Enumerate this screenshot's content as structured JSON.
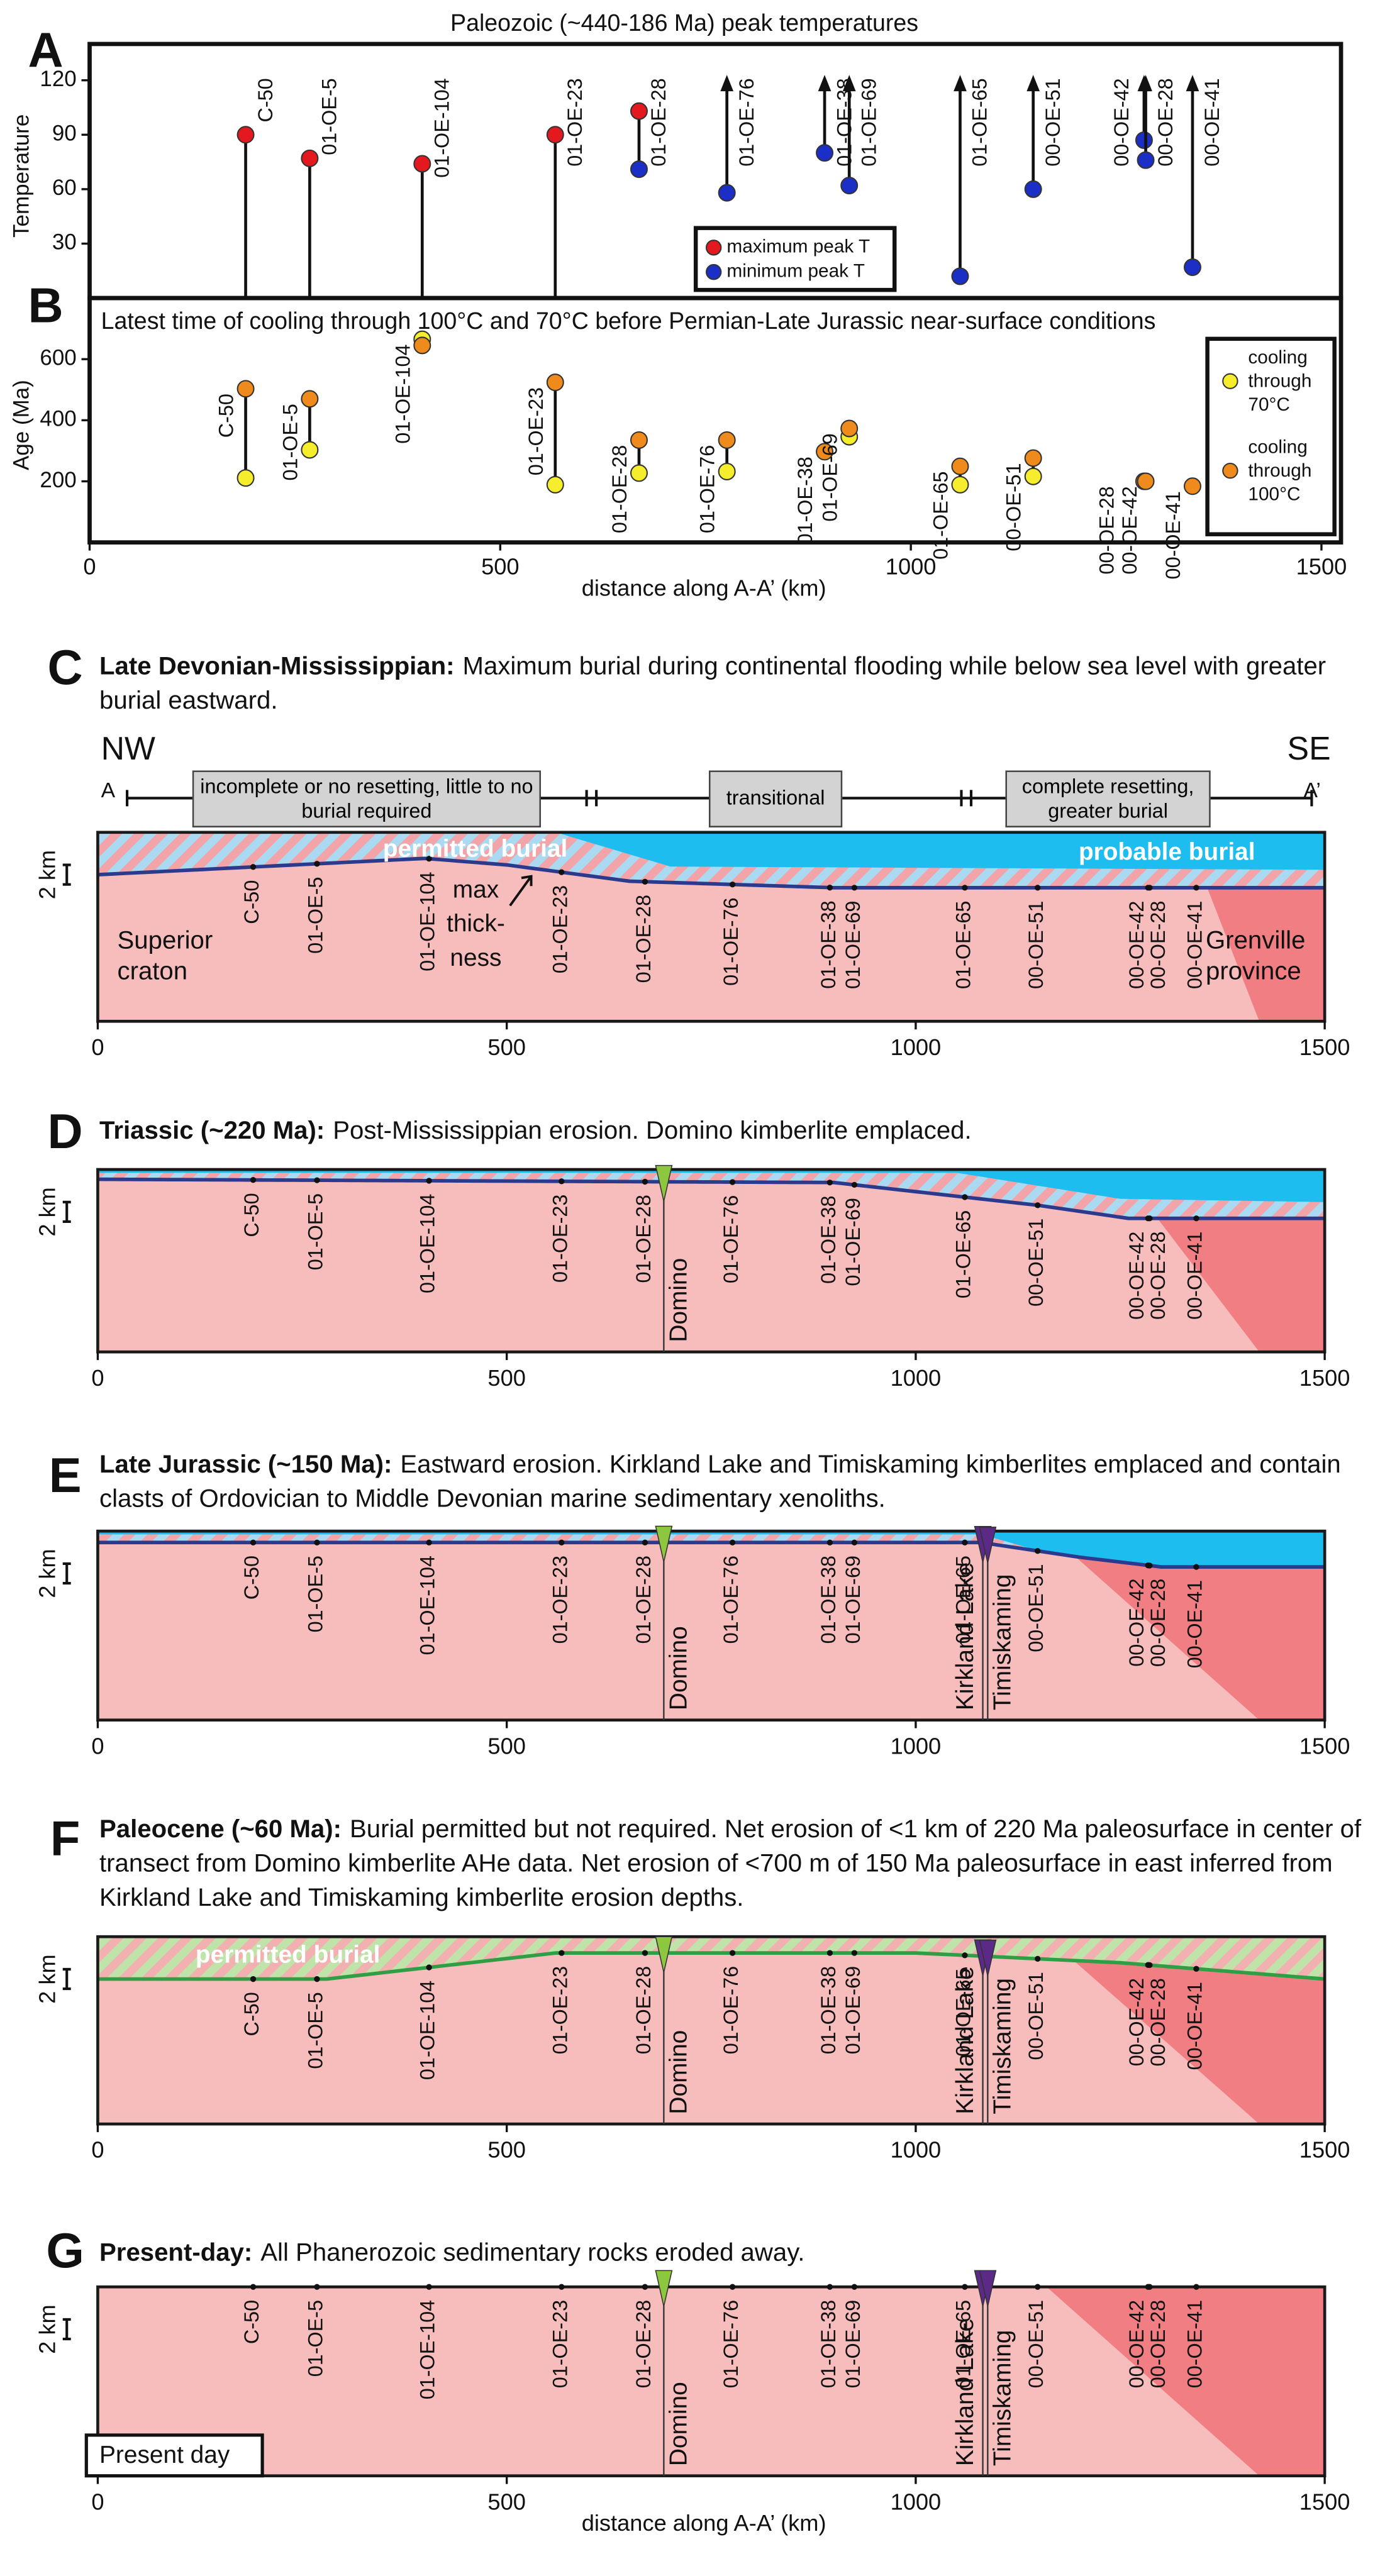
{
  "chart_data": [
    {
      "type": "dumbbell",
      "panel_label": "A",
      "title": "Paleozoic (~440-186 Ma) peak temperatures",
      "ylabel": "Temperature",
      "x": [
        190,
        268,
        405,
        567,
        669,
        776,
        895,
        925,
        1060,
        1149,
        1284,
        1286,
        1343
      ],
      "labels": [
        "C-50",
        "01-OE-5",
        "01-OE-104",
        "01-OE-23",
        "01-OE-28",
        "01-OE-76",
        "01-OE-38",
        "01-OE-69",
        "01-OE-65",
        "00-OE-51",
        "00-OE-42",
        "00-OE-28",
        "00-OE-41"
      ],
      "series": [
        {
          "name": "maximum peak T",
          "color": "#e3191f",
          "values": [
            90,
            77,
            74,
            90,
            103,
            null,
            null,
            null,
            null,
            null,
            null,
            null,
            null
          ]
        },
        {
          "name": "minimum peak T",
          "color": "#1b2fc7",
          "values": [
            null,
            null,
            null,
            null,
            71,
            58,
            80,
            62,
            12,
            60,
            87,
            76,
            17
          ]
        }
      ],
      "xlim": [
        0,
        1500
      ],
      "ylim": [
        0,
        140
      ],
      "yticks": [
        30,
        60,
        90,
        120
      ],
      "legend": "bottom"
    },
    {
      "type": "dumbbell",
      "panel_label": "B",
      "title": "Latest time of cooling through 100°C and 70°C before Permian-Late Jurassic near-surface conditions",
      "ylabel": "Age (Ma)",
      "x": [
        190,
        268,
        405,
        567,
        669,
        776,
        895,
        925,
        1060,
        1149,
        1284,
        1286,
        1343
      ],
      "labels": [
        "C-50",
        "01-OE-5",
        "01-OE-104",
        "01-OE-23",
        "01-OE-28",
        "01-OE-76",
        "01-OE-38",
        "01-OE-69",
        "01-OE-65",
        "00-OE-51",
        "00-OE-28",
        "00-OE-42",
        "00-OE-41"
      ],
      "series": [
        {
          "name": "cooling through 70°C",
          "color": "#f6ee2c",
          "values": [
            211,
            303,
            665,
            189,
            227,
            232,
            null,
            346,
            189,
            216,
            null,
            null,
            null
          ]
        },
        {
          "name": "cooling through 100°C",
          "color": "#ef8a1d",
          "values": [
            503,
            470,
            645,
            524,
            335,
            335,
            297,
            373,
            249,
            276,
            200,
            200,
            184
          ]
        }
      ],
      "xlim": [
        0,
        1500
      ],
      "xticks": [
        0,
        500,
        1000,
        1500
      ],
      "ylim": [
        0,
        800
      ],
      "yticks": [
        200,
        400,
        600
      ],
      "xlabel": "distance along A-A’ (km)",
      "legend": "right"
    }
  ],
  "sections": {
    "xlim": [
      0,
      1500
    ],
    "xticks": [
      0,
      500,
      1000,
      1500
    ],
    "xlabel": "distance along A-A’ (km)",
    "depth_label": "2 km",
    "kimberlites": [
      {
        "name": "Domino",
        "distance": 692,
        "color": "#8dc63f"
      },
      {
        "name": "Kirkland Lake",
        "distance": 1082,
        "color": "#5b2a86"
      },
      {
        "name": "Timiskaming",
        "distance": 1088,
        "color": "#5b2a86"
      }
    ],
    "panels": [
      {
        "label": "C",
        "title_bold": "Late Devonian-Mississippian:",
        "title": "Maximum burial during continental flooding while below sea level with greater burial eastward.",
        "nw": "NW",
        "se": "SE",
        "a": "A",
        "a_prime": "A’",
        "zones": [
          "incomplete or no resetting, little to no burial required",
          "transitional",
          "complete resetting, greater burial"
        ],
        "permitted": "permitted burial",
        "probable": "probable burial",
        "max_thickness": [
          "max",
          "thick-",
          "ness"
        ],
        "craton": "Superior craton",
        "province": "Grenville province"
      },
      {
        "label": "D",
        "title_bold": "Triassic (~220 Ma):",
        "title": "Post-Mississippian erosion. Domino kimberlite emplaced."
      },
      {
        "label": "E",
        "title_bold": "Late Jurassic (~150 Ma):",
        "title": "Eastward erosion. Kirkland Lake and Timiskaming kimberlites emplaced and contain clasts of Ordovician to Middle Devonian marine sedimentary xenoliths."
      },
      {
        "label": "F",
        "title_bold": "Paleocene (~60 Ma):",
        "title": "Burial permitted but not required. Net erosion of <1 km of 220 Ma paleosurface in center of transect from Domino kimberlite AHe data. Net erosion of  <700 m of 150 Ma paleosurface in east inferred from Kirkland Lake and Timiskaming kimberlite erosion depths.",
        "permitted": "permitted burial"
      },
      {
        "label": "G",
        "title_bold": "Present-day:",
        "title": "All Phanerozoic sedimentary rocks eroded away.",
        "present": "Present day"
      }
    ]
  }
}
